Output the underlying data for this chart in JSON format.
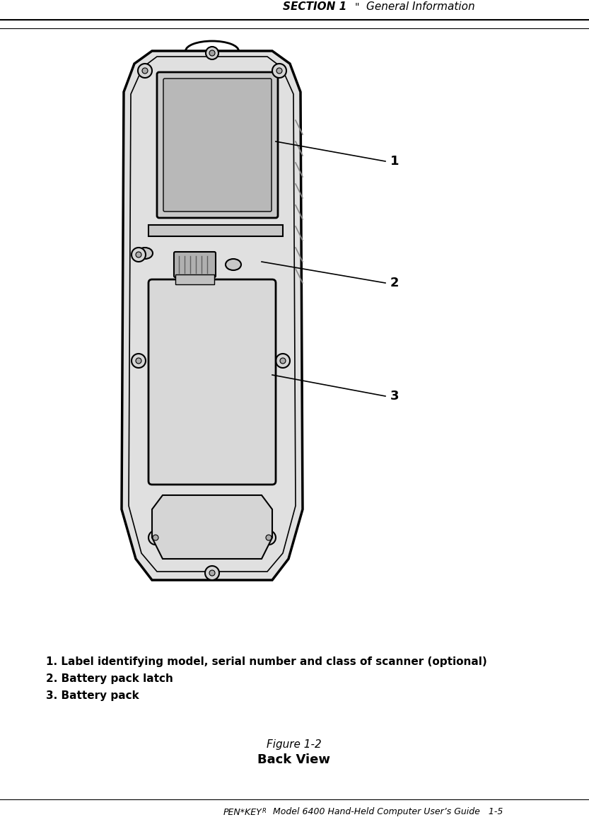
{
  "bg_color": "#ffffff",
  "header_text": "SECTION 1",
  "header_separator": "\"",
  "header_subtitle": "General Information",
  "caption_italic": "Figure 1-2",
  "caption_bold": "Back View",
  "desc1": "1. Label identifying model, serial number and class of scanner (optional)",
  "desc2": "2. Battery pack latch",
  "desc3": "3. Battery pack",
  "callout1": "1",
  "callout2": "2",
  "callout3": "3",
  "line_color": "#000000",
  "footer_penkey": "PEN*KEY",
  "footer_super": "R",
  "footer_rest": " Model 6400 Hand-Held Computer User’s Guide   1-5"
}
